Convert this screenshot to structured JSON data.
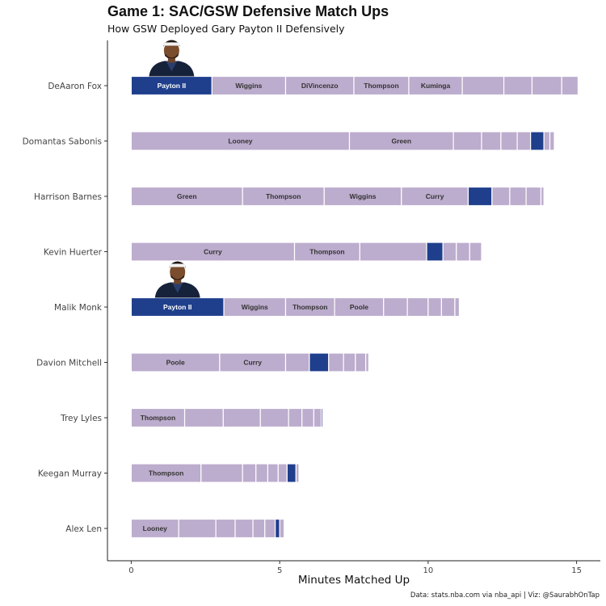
{
  "title": "Game 1: SAC/GSW Defensive Match Ups",
  "subtitle": "How GSW Deployed Gary Payton II Defensively",
  "caption": "Data: stats.nba.com via nba_api | Viz: @SaurabhOnTap",
  "colors": {
    "highlight": "#1f3f8c",
    "other": "#bcaccd",
    "highlight_label": "#ffffff",
    "other_label": "#333333"
  },
  "icons": {
    "player_photo": "gary-payton-ii-headshot-icon"
  },
  "chart_data": {
    "type": "bar",
    "orientation": "horizontal",
    "stacked": true,
    "xlabel": "Minutes Matched Up",
    "ylabel": "",
    "xlim": [
      -0.8,
      15.8
    ],
    "xticks": [
      0,
      5,
      10,
      15
    ],
    "grid": false,
    "highlight_defender": "Payton II",
    "rows": [
      {
        "player": "DeAaron Fox",
        "photo": true,
        "segments": [
          {
            "defender": "Payton II",
            "minutes": 2.72,
            "label": "Payton II"
          },
          {
            "defender": "Wiggins",
            "minutes": 2.48,
            "label": "Wiggins"
          },
          {
            "defender": "DiVincenzo",
            "minutes": 2.3,
            "label": "DiVincenzo"
          },
          {
            "defender": "Thompson",
            "minutes": 1.85,
            "label": "Thompson"
          },
          {
            "defender": "Kuminga",
            "minutes": 1.8,
            "label": "Kuminga"
          },
          {
            "minutes": 1.4
          },
          {
            "minutes": 0.95
          },
          {
            "minutes": 1.0
          },
          {
            "minutes": 0.55
          }
        ]
      },
      {
        "player": "Domantas Sabonis",
        "segments": [
          {
            "defender": "Looney",
            "minutes": 7.35,
            "label": "Looney"
          },
          {
            "defender": "Green",
            "minutes": 3.5,
            "label": "Green"
          },
          {
            "minutes": 0.95
          },
          {
            "minutes": 0.65
          },
          {
            "minutes": 0.55
          },
          {
            "minutes": 0.45
          },
          {
            "defender": "Payton II",
            "minutes": 0.45
          },
          {
            "minutes": 0.2
          },
          {
            "minutes": 0.15
          }
        ]
      },
      {
        "player": "Harrison Barnes",
        "segments": [
          {
            "defender": "Green",
            "minutes": 3.75,
            "label": "Green"
          },
          {
            "defender": "Thompson",
            "minutes": 2.75,
            "label": "Thompson"
          },
          {
            "defender": "Wiggins",
            "minutes": 2.6,
            "label": "Wiggins"
          },
          {
            "defender": "Curry",
            "minutes": 2.25,
            "label": "Curry"
          },
          {
            "defender": "Payton II",
            "minutes": 0.8
          },
          {
            "minutes": 0.6
          },
          {
            "minutes": 0.55
          },
          {
            "minutes": 0.5
          },
          {
            "minutes": 0.1
          }
        ]
      },
      {
        "player": "Kevin Huerter",
        "segments": [
          {
            "defender": "Curry",
            "minutes": 5.5,
            "label": "Curry"
          },
          {
            "defender": "Thompson",
            "minutes": 2.2,
            "label": "Thompson"
          },
          {
            "minutes": 2.25
          },
          {
            "defender": "Payton II",
            "minutes": 0.55
          },
          {
            "minutes": 0.45
          },
          {
            "minutes": 0.45
          },
          {
            "minutes": 0.4
          }
        ]
      },
      {
        "player": "Malik Monk",
        "photo": true,
        "segments": [
          {
            "defender": "Payton II",
            "minutes": 3.12,
            "label": "Payton II"
          },
          {
            "defender": "Wiggins",
            "minutes": 2.08,
            "label": "Wiggins"
          },
          {
            "defender": "Thompson",
            "minutes": 1.65,
            "label": "Thompson"
          },
          {
            "defender": "Poole",
            "minutes": 1.65,
            "label": "Poole"
          },
          {
            "minutes": 0.8
          },
          {
            "minutes": 0.7
          },
          {
            "minutes": 0.45
          },
          {
            "minutes": 0.45
          },
          {
            "minutes": 0.15
          }
        ]
      },
      {
        "player": "Davion Mitchell",
        "segments": [
          {
            "defender": "Poole",
            "minutes": 2.98,
            "label": "Poole"
          },
          {
            "defender": "Curry",
            "minutes": 2.22,
            "label": "Curry"
          },
          {
            "minutes": 0.8
          },
          {
            "defender": "Payton II",
            "minutes": 0.65
          },
          {
            "minutes": 0.5
          },
          {
            "minutes": 0.4
          },
          {
            "minutes": 0.35
          },
          {
            "minutes": 0.1
          }
        ]
      },
      {
        "player": "Trey Lyles",
        "segments": [
          {
            "defender": "Thompson",
            "minutes": 1.8,
            "label": "Thompson"
          },
          {
            "minutes": 1.3
          },
          {
            "minutes": 1.25
          },
          {
            "minutes": 0.95
          },
          {
            "minutes": 0.45
          },
          {
            "minutes": 0.4
          },
          {
            "minutes": 0.25
          },
          {
            "defender": "Payton II",
            "minutes": 0.05
          }
        ]
      },
      {
        "player": "Keegan Murray",
        "segments": [
          {
            "defender": "Thompson",
            "minutes": 2.35,
            "label": "Thompson"
          },
          {
            "minutes": 1.4
          },
          {
            "minutes": 0.45
          },
          {
            "minutes": 0.4
          },
          {
            "minutes": 0.35
          },
          {
            "minutes": 0.3
          },
          {
            "defender": "Payton II",
            "minutes": 0.3
          },
          {
            "minutes": 0.1
          }
        ]
      },
      {
        "player": "Alex Len",
        "segments": [
          {
            "defender": "Looney",
            "minutes": 1.6,
            "label": "Looney"
          },
          {
            "minutes": 1.25
          },
          {
            "minutes": 0.65
          },
          {
            "minutes": 0.6
          },
          {
            "minutes": 0.4
          },
          {
            "minutes": 0.35
          },
          {
            "defender": "Payton II",
            "minutes": 0.15
          },
          {
            "minutes": 0.15
          }
        ]
      }
    ]
  }
}
